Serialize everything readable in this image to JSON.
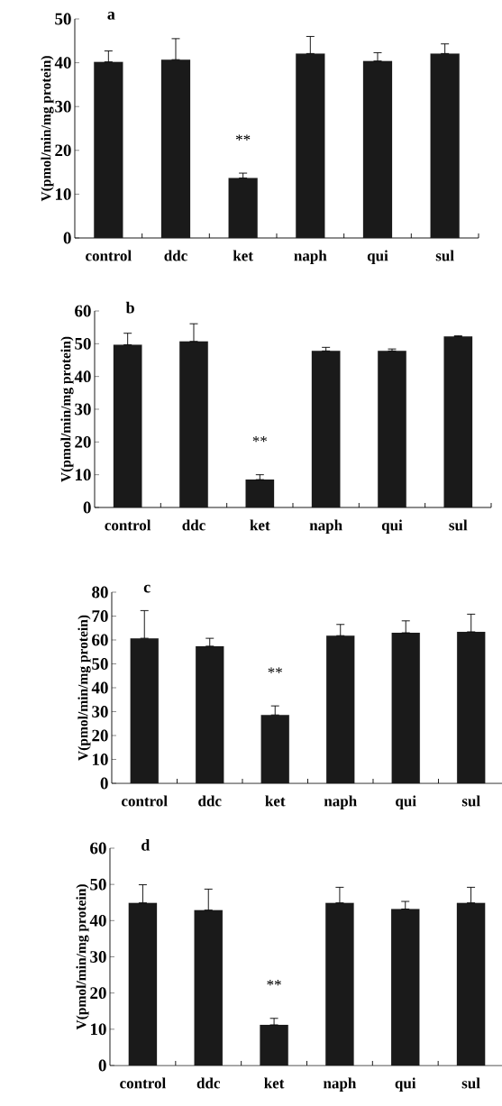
{
  "chart_data": [
    {
      "type": "bar",
      "title": "a",
      "ylabel": "V(pmol/min/mg protein)",
      "categories": [
        "control",
        "ddc",
        "ket",
        "naph",
        "qui",
        "sul"
      ],
      "values": [
        40.2,
        40.7,
        13.7,
        42.1,
        40.4,
        42.1
      ],
      "errors": [
        [
          40.2,
          42.7
        ],
        [
          40.7,
          45.5
        ],
        [
          13.7,
          14.8
        ],
        [
          42.1,
          46.0
        ],
        [
          40.4,
          42.3
        ],
        [
          42.1,
          44.3
        ]
      ],
      "color": "#1a1a1a",
      "ylim": [
        0,
        50
      ],
      "yticks": [
        0,
        10,
        20,
        30,
        40,
        50
      ],
      "annotations": [
        "**"
      ]
    },
    {
      "type": "bar",
      "title": "b",
      "ylabel": "V(pmol/min/mg protein)",
      "categories": [
        "control",
        "ddc",
        "ket",
        "naph",
        "qui",
        "sul"
      ],
      "values": [
        49.7,
        50.7,
        8.5,
        47.8,
        47.8,
        52.2
      ],
      "errors": [
        [
          49.7,
          53.2
        ],
        [
          50.7,
          56.1
        ],
        [
          8.5,
          10.0
        ],
        [
          47.8,
          48.9
        ],
        [
          47.8,
          48.4
        ],
        [
          52.2,
          52.4
        ]
      ],
      "color": "#1a1a1a",
      "ylim": [
        0,
        60
      ],
      "yticks": [
        0,
        10,
        20,
        30,
        40,
        50,
        60
      ],
      "annotations": [
        "**"
      ]
    },
    {
      "type": "bar",
      "title": "c",
      "ylabel": "V(pmol/min/mg protein)",
      "categories": [
        "control",
        "ddc",
        "ket",
        "naph",
        "qui",
        "sul"
      ],
      "values": [
        60.7,
        57.4,
        28.6,
        61.8,
        63.0,
        63.4
      ],
      "errors": [
        [
          60.7,
          72.3
        ],
        [
          57.4,
          60.7
        ],
        [
          28.6,
          32.4
        ],
        [
          61.8,
          66.5
        ],
        [
          63.0,
          68.0
        ],
        [
          63.4,
          70.8
        ]
      ],
      "color": "#1a1a1a",
      "ylim": [
        0,
        80
      ],
      "yticks": [
        0,
        10,
        20,
        30,
        40,
        50,
        60,
        70,
        80
      ],
      "annotations": [
        "**"
      ]
    },
    {
      "type": "bar",
      "title": "d",
      "ylabel": "V(pmol/min/mg protein)",
      "categories": [
        "control",
        "ddc",
        "ket",
        "naph",
        "qui",
        "sul"
      ],
      "values": [
        44.9,
        42.9,
        11.2,
        44.9,
        43.2,
        44.9
      ],
      "errors": [
        [
          44.9,
          49.9
        ],
        [
          42.9,
          48.7
        ],
        [
          11.2,
          13.0
        ],
        [
          44.9,
          49.2
        ],
        [
          43.2,
          45.3
        ],
        [
          44.9,
          49.2
        ]
      ],
      "color": "#1a1a1a",
      "ylim": [
        0,
        60
      ],
      "yticks": [
        0,
        10,
        20,
        30,
        40,
        50,
        60
      ],
      "annotations": [
        "**"
      ]
    }
  ]
}
